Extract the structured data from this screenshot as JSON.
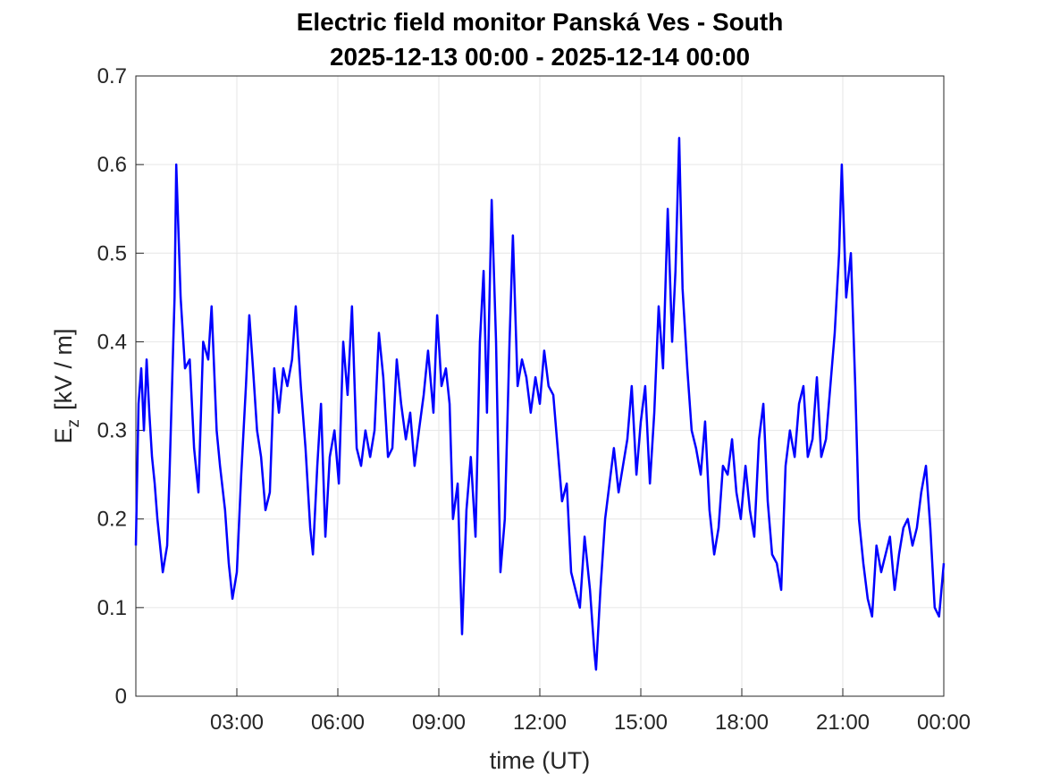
{
  "chart_data": {
    "type": "line",
    "title": "Electric field monitor Panská Ves - South",
    "subtitle": "2025-12-13 00:00 - 2025-12-14 00:00",
    "xlabel": "time (UT)",
    "ylabel": {
      "base": "E",
      "subscript": "z",
      "unit": "[kV / m]"
    },
    "color": "#0000ff",
    "grid": true,
    "xlim": [
      0,
      24
    ],
    "xticks": [
      {
        "value": 3,
        "label": "03:00"
      },
      {
        "value": 6,
        "label": "06:00"
      },
      {
        "value": 9,
        "label": "09:00"
      },
      {
        "value": 12,
        "label": "12:00"
      },
      {
        "value": 15,
        "label": "15:00"
      },
      {
        "value": 18,
        "label": "18:00"
      },
      {
        "value": 21,
        "label": "21:00"
      },
      {
        "value": 24,
        "label": "00:00"
      }
    ],
    "ylim": [
      0,
      0.7
    ],
    "yticks": [
      0,
      0.1,
      0.2,
      0.3,
      0.4,
      0.5,
      0.6,
      0.7
    ],
    "x": [
      0,
      0.08,
      0.16,
      0.24,
      0.32,
      0.4,
      0.48,
      0.56,
      0.64,
      0.72,
      0.8,
      0.93,
      1.0,
      1.15,
      1.2,
      1.33,
      1.46,
      1.6,
      1.73,
      1.86,
      2.0,
      2.15,
      2.25,
      2.4,
      2.5,
      2.65,
      2.76,
      2.87,
      3.0,
      3.13,
      3.27,
      3.37,
      3.48,
      3.6,
      3.72,
      3.85,
      3.98,
      4.11,
      4.25,
      4.38,
      4.5,
      4.64,
      4.75,
      4.9,
      5.04,
      5.18,
      5.26,
      5.39,
      5.5,
      5.63,
      5.76,
      5.9,
      6.03,
      6.16,
      6.29,
      6.42,
      6.56,
      6.69,
      6.82,
      6.96,
      7.09,
      7.22,
      7.35,
      7.49,
      7.62,
      7.75,
      7.88,
      8.02,
      8.15,
      8.28,
      8.41,
      8.55,
      8.68,
      8.84,
      8.95,
      9.08,
      9.21,
      9.32,
      9.42,
      9.56,
      9.69,
      9.82,
      9.95,
      10.09,
      10.22,
      10.33,
      10.43,
      10.57,
      10.7,
      10.83,
      10.96,
      11.1,
      11.2,
      11.34,
      11.47,
      11.6,
      11.73,
      11.87,
      12.0,
      12.13,
      12.26,
      12.4,
      12.53,
      12.66,
      12.8,
      12.93,
      13.06,
      13.19,
      13.33,
      13.49,
      13.62,
      13.67,
      13.8,
      13.94,
      14.07,
      14.2,
      14.34,
      14.47,
      14.6,
      14.73,
      14.87,
      15.0,
      15.13,
      15.27,
      15.4,
      15.53,
      15.66,
      15.8,
      15.93,
      16.03,
      16.14,
      16.24,
      16.38,
      16.51,
      16.64,
      16.78,
      16.91,
      17.04,
      17.18,
      17.31,
      17.44,
      17.58,
      17.71,
      17.84,
      17.97,
      18.11,
      18.24,
      18.37,
      18.51,
      18.64,
      18.77,
      18.9,
      19.04,
      19.17,
      19.3,
      19.43,
      19.57,
      19.7,
      19.83,
      19.96,
      20.1,
      20.23,
      20.36,
      20.5,
      20.63,
      20.76,
      20.89,
      20.97,
      21.1,
      21.24,
      21.37,
      21.48,
      21.61,
      21.74,
      21.87,
      22.0,
      22.14,
      22.27,
      22.4,
      22.54,
      22.67,
      22.8,
      22.93,
      23.07,
      23.2,
      23.33,
      23.47,
      23.6,
      23.73,
      23.86,
      24.0
    ],
    "values": [
      0.17,
      0.33,
      0.37,
      0.3,
      0.38,
      0.32,
      0.27,
      0.24,
      0.2,
      0.17,
      0.14,
      0.17,
      0.25,
      0.45,
      0.6,
      0.45,
      0.37,
      0.38,
      0.28,
      0.23,
      0.4,
      0.38,
      0.44,
      0.3,
      0.26,
      0.21,
      0.15,
      0.11,
      0.14,
      0.25,
      0.35,
      0.43,
      0.37,
      0.3,
      0.27,
      0.21,
      0.23,
      0.37,
      0.32,
      0.37,
      0.35,
      0.38,
      0.44,
      0.35,
      0.28,
      0.19,
      0.16,
      0.26,
      0.33,
      0.18,
      0.27,
      0.3,
      0.24,
      0.4,
      0.34,
      0.44,
      0.28,
      0.26,
      0.3,
      0.27,
      0.3,
      0.41,
      0.36,
      0.27,
      0.28,
      0.38,
      0.33,
      0.29,
      0.32,
      0.26,
      0.3,
      0.34,
      0.39,
      0.32,
      0.43,
      0.35,
      0.37,
      0.33,
      0.2,
      0.24,
      0.07,
      0.21,
      0.27,
      0.18,
      0.4,
      0.48,
      0.32,
      0.56,
      0.4,
      0.14,
      0.2,
      0.4,
      0.52,
      0.35,
      0.38,
      0.36,
      0.32,
      0.36,
      0.33,
      0.39,
      0.35,
      0.34,
      0.28,
      0.22,
      0.24,
      0.14,
      0.12,
      0.1,
      0.18,
      0.12,
      0.05,
      0.03,
      0.12,
      0.2,
      0.24,
      0.28,
      0.23,
      0.26,
      0.29,
      0.35,
      0.25,
      0.31,
      0.35,
      0.24,
      0.32,
      0.44,
      0.37,
      0.55,
      0.4,
      0.48,
      0.63,
      0.46,
      0.37,
      0.3,
      0.28,
      0.25,
      0.31,
      0.21,
      0.16,
      0.19,
      0.26,
      0.25,
      0.29,
      0.23,
      0.2,
      0.26,
      0.21,
      0.18,
      0.29,
      0.33,
      0.22,
      0.16,
      0.15,
      0.12,
      0.26,
      0.3,
      0.27,
      0.33,
      0.35,
      0.27,
      0.29,
      0.36,
      0.27,
      0.29,
      0.35,
      0.41,
      0.5,
      0.6,
      0.45,
      0.5,
      0.35,
      0.2,
      0.15,
      0.11,
      0.09,
      0.17,
      0.14,
      0.16,
      0.18,
      0.12,
      0.16,
      0.19,
      0.2,
      0.17,
      0.19,
      0.23,
      0.26,
      0.19,
      0.1,
      0.09,
      0.15
    ]
  }
}
